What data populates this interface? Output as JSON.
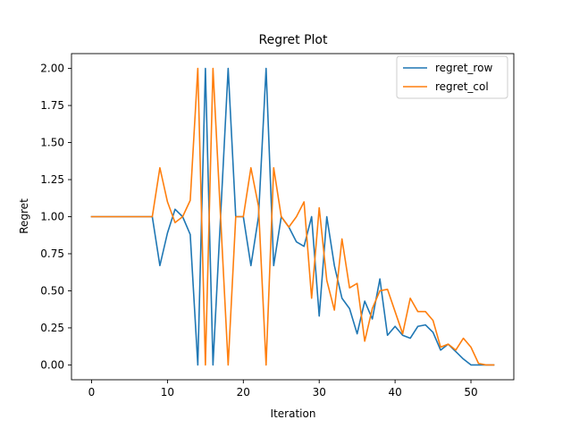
{
  "chart_data": {
    "type": "line",
    "title": "Regret Plot",
    "xlabel": "Iteration",
    "ylabel": "Regret",
    "xlim": [
      -2.65,
      55.65
    ],
    "ylim": [
      -0.1,
      2.1
    ],
    "xticks": [
      0,
      10,
      20,
      30,
      40,
      50
    ],
    "yticks": [
      0.0,
      0.25,
      0.5,
      0.75,
      1.0,
      1.25,
      1.5,
      1.75,
      2.0
    ],
    "ytick_labels": [
      "0.00",
      "0.25",
      "0.50",
      "0.75",
      "1.00",
      "1.25",
      "1.50",
      "1.75",
      "2.00"
    ],
    "grid": false,
    "legend_position": "top-right",
    "x": [
      0,
      1,
      2,
      3,
      4,
      5,
      6,
      7,
      8,
      9,
      10,
      11,
      12,
      13,
      14,
      15,
      16,
      17,
      18,
      19,
      20,
      21,
      22,
      23,
      24,
      25,
      26,
      27,
      28,
      29,
      30,
      31,
      32,
      33,
      34,
      35,
      36,
      37,
      38,
      39,
      40,
      41,
      42,
      43,
      44,
      45,
      46,
      47,
      48,
      49,
      50,
      51,
      52,
      53
    ],
    "series": [
      {
        "name": "regret_row",
        "color": "#1f77b4",
        "values": [
          1.0,
          1.0,
          1.0,
          1.0,
          1.0,
          1.0,
          1.0,
          1.0,
          1.0,
          0.67,
          0.89,
          1.05,
          1.0,
          0.88,
          0.0,
          2.0,
          0.0,
          1.0,
          2.0,
          1.0,
          1.0,
          0.67,
          1.0,
          2.0,
          0.67,
          1.0,
          0.93,
          0.83,
          0.8,
          1.0,
          0.33,
          1.0,
          0.67,
          0.45,
          0.38,
          0.21,
          0.43,
          0.31,
          0.58,
          0.2,
          0.26,
          0.2,
          0.18,
          0.26,
          0.27,
          0.22,
          0.1,
          0.14,
          0.09,
          0.04,
          0.0,
          0.0,
          0.0,
          0.0
        ]
      },
      {
        "name": "regret_col",
        "color": "#ff7f0e",
        "values": [
          1.0,
          1.0,
          1.0,
          1.0,
          1.0,
          1.0,
          1.0,
          1.0,
          1.0,
          1.33,
          1.1,
          0.96,
          1.0,
          1.11,
          2.0,
          0.0,
          2.0,
          1.0,
          0.0,
          1.0,
          1.0,
          1.33,
          1.07,
          0.0,
          1.33,
          1.0,
          0.93,
          1.0,
          1.1,
          0.45,
          1.06,
          0.57,
          0.37,
          0.85,
          0.52,
          0.55,
          0.16,
          0.38,
          0.5,
          0.51,
          0.36,
          0.21,
          0.45,
          0.36,
          0.36,
          0.3,
          0.12,
          0.14,
          0.1,
          0.18,
          0.12,
          0.01,
          0.0,
          0.0
        ]
      }
    ]
  }
}
